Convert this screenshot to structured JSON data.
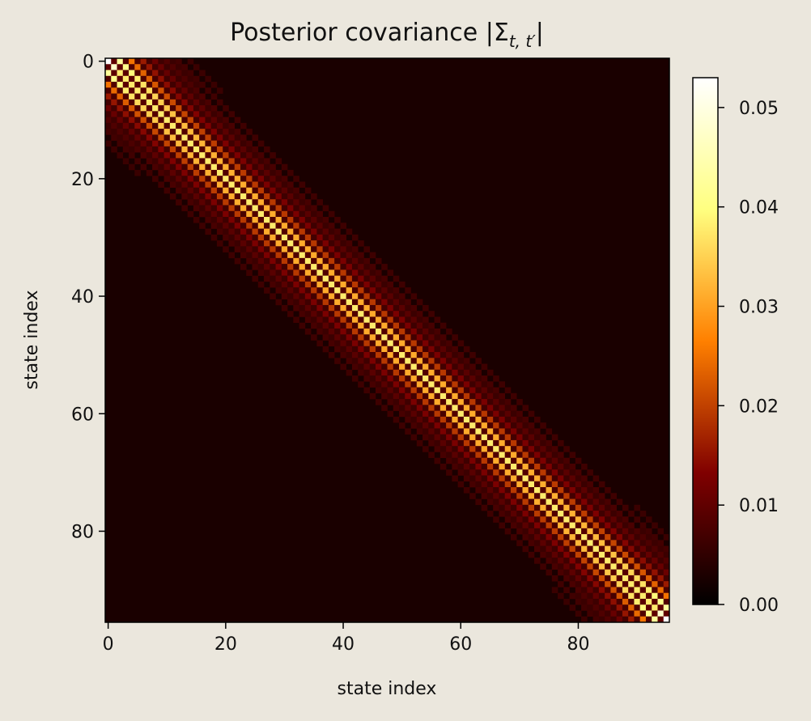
{
  "chart_data": {
    "type": "heatmap",
    "title": "Posterior covariance |Σ",
    "title_subscript": "t, t′",
    "title_suffix": "|",
    "xlabel": "state index",
    "ylabel": "state index",
    "n": 96,
    "x_ticks": [
      0,
      20,
      40,
      60,
      80
    ],
    "y_ticks": [
      0,
      20,
      40,
      60,
      80
    ],
    "colorbar": {
      "min": 0.0,
      "max": 0.053,
      "ticks": [
        0.0,
        0.01,
        0.02,
        0.03,
        0.04,
        0.05
      ],
      "tick_labels": [
        "0.00",
        "0.01",
        "0.02",
        "0.03",
        "0.04",
        "0.05"
      ]
    },
    "colormap": "afmhot",
    "diagonal_value": 0.036,
    "corner_value": 0.053,
    "first_offdiag_value": 0.0
  },
  "colors": {
    "background": "#ebe7dd",
    "cell_floor": "#1a0000"
  }
}
